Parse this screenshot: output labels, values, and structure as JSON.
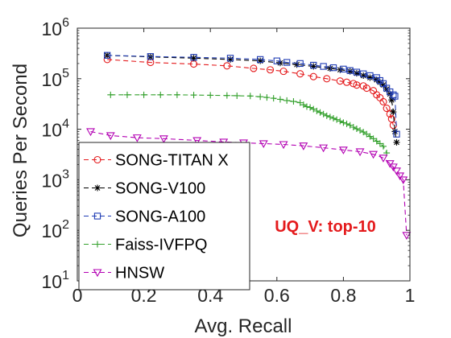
{
  "chart_data": {
    "type": "line",
    "xlabel": "Avg. Recall",
    "ylabel": "Queries Per Second",
    "xlim": [
      0,
      1
    ],
    "ylim": [
      10,
      1000000
    ],
    "yscale": "log",
    "x_ticks": [
      "0",
      "0.2",
      "0.4",
      "0.6",
      "0.8",
      "1"
    ],
    "y_ticks": [
      {
        "base": "10",
        "exp": "1"
      },
      {
        "base": "10",
        "exp": "2"
      },
      {
        "base": "10",
        "exp": "3"
      },
      {
        "base": "10",
        "exp": "4"
      },
      {
        "base": "10",
        "exp": "5"
      },
      {
        "base": "10",
        "exp": "6"
      }
    ],
    "grid": false,
    "legend_position": "bottom-left",
    "annotation": "UQ_V: top-10",
    "annotation_color": "#e41a1c",
    "series": [
      {
        "name": "SONG-TITAN X",
        "color": "#e41a1c",
        "marker": "circle",
        "points": [
          [
            0.09,
            240000
          ],
          [
            0.22,
            210000
          ],
          [
            0.35,
            195000
          ],
          [
            0.45,
            180000
          ],
          [
            0.53,
            160000
          ],
          [
            0.58,
            150000
          ],
          [
            0.62,
            140000
          ],
          [
            0.67,
            125000
          ],
          [
            0.71,
            110000
          ],
          [
            0.75,
            100000
          ],
          [
            0.79,
            90000
          ],
          [
            0.81,
            85000
          ],
          [
            0.83,
            80000
          ],
          [
            0.84,
            75000
          ],
          [
            0.86,
            72000
          ],
          [
            0.87,
            65000
          ],
          [
            0.89,
            58000
          ],
          [
            0.9,
            48000
          ],
          [
            0.91,
            42000
          ],
          [
            0.92,
            35000
          ],
          [
            0.93,
            26000
          ],
          [
            0.94,
            20000
          ],
          [
            0.945,
            16000
          ],
          [
            0.95,
            12000
          ]
        ]
      },
      {
        "name": "SONG-V100",
        "color": "#000000",
        "marker": "star",
        "points": [
          [
            0.09,
            290000
          ],
          [
            0.22,
            270000
          ],
          [
            0.35,
            255000
          ],
          [
            0.46,
            240000
          ],
          [
            0.55,
            225000
          ],
          [
            0.61,
            205000
          ],
          [
            0.66,
            190000
          ],
          [
            0.71,
            175000
          ],
          [
            0.76,
            160000
          ],
          [
            0.79,
            150000
          ],
          [
            0.82,
            140000
          ],
          [
            0.84,
            128000
          ],
          [
            0.86,
            115000
          ],
          [
            0.88,
            105000
          ],
          [
            0.9,
            95000
          ],
          [
            0.91,
            85000
          ],
          [
            0.92,
            75000
          ],
          [
            0.93,
            62000
          ],
          [
            0.94,
            50000
          ],
          [
            0.945,
            38000
          ],
          [
            0.95,
            22000
          ],
          [
            0.955,
            9000
          ],
          [
            0.96,
            5500
          ]
        ]
      },
      {
        "name": "SONG-A100",
        "color": "#1f3cb4",
        "marker": "square",
        "points": [
          [
            0.09,
            290000
          ],
          [
            0.22,
            275000
          ],
          [
            0.35,
            265000
          ],
          [
            0.46,
            255000
          ],
          [
            0.55,
            240000
          ],
          [
            0.6,
            225000
          ],
          [
            0.63,
            210000
          ],
          [
            0.67,
            200000
          ],
          [
            0.71,
            185000
          ],
          [
            0.74,
            175000
          ],
          [
            0.77,
            165000
          ],
          [
            0.8,
            155000
          ],
          [
            0.82,
            145000
          ],
          [
            0.84,
            135000
          ],
          [
            0.86,
            125000
          ],
          [
            0.88,
            115000
          ],
          [
            0.9,
            105000
          ],
          [
            0.91,
            92000
          ],
          [
            0.92,
            80000
          ],
          [
            0.93,
            65000
          ],
          [
            0.94,
            55000
          ],
          [
            0.95,
            48000
          ],
          [
            0.955,
            45000
          ],
          [
            0.96,
            8000
          ]
        ]
      },
      {
        "name": "Faiss-IVFPQ",
        "color": "#33a02c",
        "marker": "plus",
        "points": [
          [
            0.1,
            48000
          ],
          [
            0.15,
            48000
          ],
          [
            0.2,
            48000
          ],
          [
            0.25,
            48000
          ],
          [
            0.3,
            48000
          ],
          [
            0.35,
            47500
          ],
          [
            0.4,
            47000
          ],
          [
            0.45,
            46500
          ],
          [
            0.48,
            46000
          ],
          [
            0.52,
            45500
          ],
          [
            0.55,
            44000
          ],
          [
            0.57,
            42500
          ],
          [
            0.59,
            41000
          ],
          [
            0.61,
            39000
          ],
          [
            0.63,
            37000
          ],
          [
            0.65,
            35500
          ],
          [
            0.67,
            33500
          ],
          [
            0.68,
            30500
          ],
          [
            0.69,
            28000
          ],
          [
            0.7,
            27000
          ],
          [
            0.71,
            25000
          ],
          [
            0.72,
            23000
          ],
          [
            0.73,
            21500
          ],
          [
            0.74,
            20000
          ],
          [
            0.75,
            18500
          ],
          [
            0.76,
            17500
          ],
          [
            0.77,
            16500
          ],
          [
            0.78,
            15500
          ],
          [
            0.79,
            14500
          ],
          [
            0.8,
            13500
          ],
          [
            0.81,
            12800
          ],
          [
            0.82,
            12000
          ],
          [
            0.83,
            11000
          ],
          [
            0.84,
            10200
          ],
          [
            0.85,
            9500
          ],
          [
            0.86,
            8800
          ],
          [
            0.87,
            8000
          ],
          [
            0.88,
            7200
          ],
          [
            0.89,
            6500
          ],
          [
            0.9,
            5800
          ],
          [
            0.91,
            5200
          ],
          [
            0.92,
            4600
          ],
          [
            0.93,
            3400
          ]
        ]
      },
      {
        "name": "HNSW",
        "color": "#b300b3",
        "marker": "triangle-down",
        "points": [
          [
            0.04,
            9000
          ],
          [
            0.1,
            7500
          ],
          [
            0.18,
            6800
          ],
          [
            0.26,
            6500
          ],
          [
            0.36,
            6000
          ],
          [
            0.44,
            5600
          ],
          [
            0.5,
            5400
          ],
          [
            0.56,
            5200
          ],
          [
            0.62,
            5000
          ],
          [
            0.68,
            4700
          ],
          [
            0.74,
            4300
          ],
          [
            0.8,
            3900
          ],
          [
            0.85,
            3600
          ],
          [
            0.89,
            3200
          ],
          [
            0.92,
            2700
          ],
          [
            0.94,
            2100
          ],
          [
            0.95,
            1800
          ],
          [
            0.96,
            1500
          ],
          [
            0.97,
            1200
          ],
          [
            0.98,
            1000
          ],
          [
            0.99,
            80
          ]
        ]
      }
    ]
  }
}
